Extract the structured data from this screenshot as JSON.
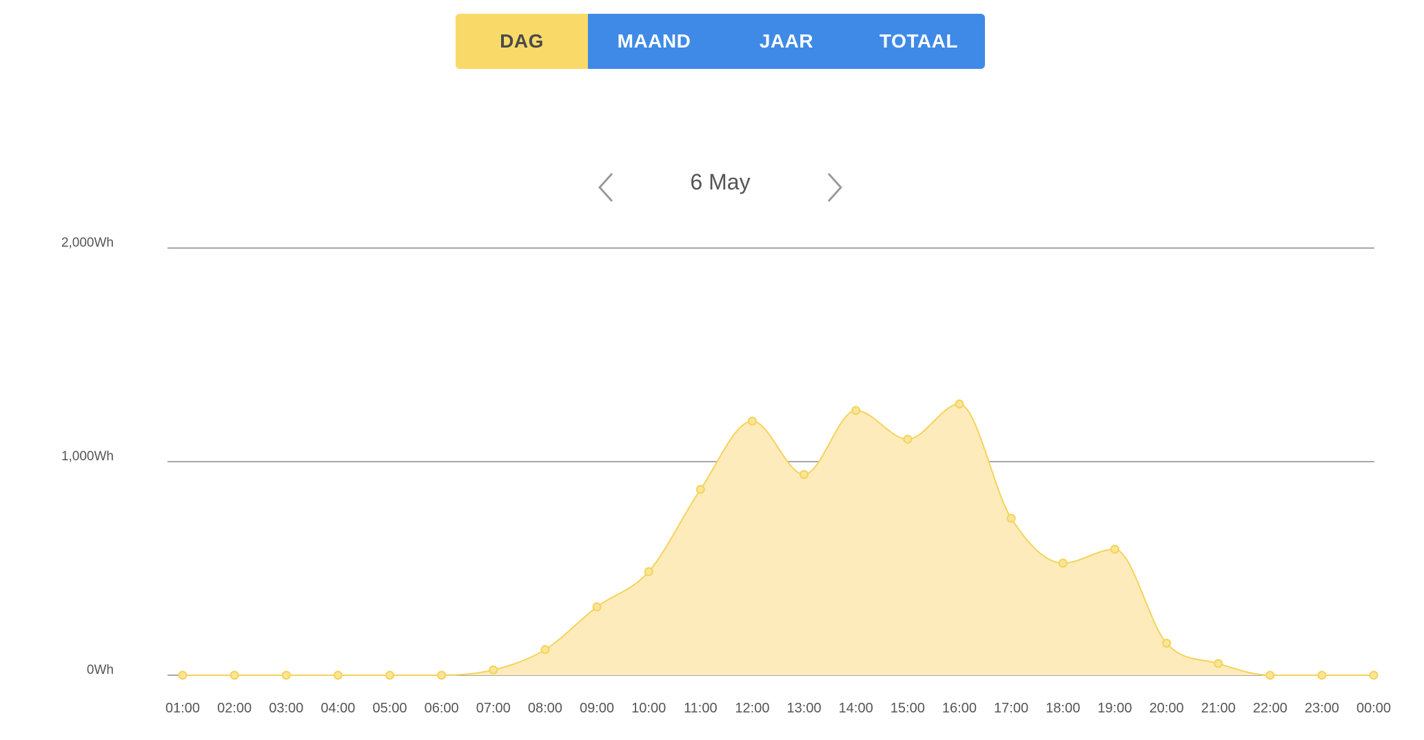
{
  "tabs": [
    {
      "label": "DAG",
      "active": true
    },
    {
      "label": "MAAND",
      "active": false
    },
    {
      "label": "JAAR",
      "active": false
    },
    {
      "label": "TOTAAL",
      "active": false
    }
  ],
  "date_nav": {
    "label": "6 May",
    "prev_icon": "chevron-left-icon",
    "next_icon": "chevron-right-icon"
  },
  "colors": {
    "tab_active": "#f9d968",
    "tab_inactive": "#3f8ae6",
    "line": "#f5d35a",
    "fill": "#fdebbb",
    "grid": "#8a8a8a"
  },
  "chart_data": {
    "type": "area",
    "x": [
      "01:00",
      "02:00",
      "03:00",
      "04:00",
      "05:00",
      "06:00",
      "07:00",
      "08:00",
      "09:00",
      "10:00",
      "11:00",
      "12:00",
      "13:00",
      "14:00",
      "15:00",
      "16:00",
      "17:00",
      "18:00",
      "19:00",
      "20:00",
      "21:00",
      "22:00",
      "23:00",
      "00:00"
    ],
    "values": [
      0,
      0,
      0,
      0,
      0,
      0,
      25,
      120,
      320,
      485,
      870,
      1190,
      940,
      1240,
      1105,
      1270,
      735,
      525,
      590,
      150,
      55,
      0,
      0,
      0
    ],
    "y_ticks": [
      "0Wh",
      "1,000Wh",
      "2,000Wh"
    ],
    "ylim": [
      0,
      2000
    ],
    "grid": true,
    "smooth": true
  }
}
